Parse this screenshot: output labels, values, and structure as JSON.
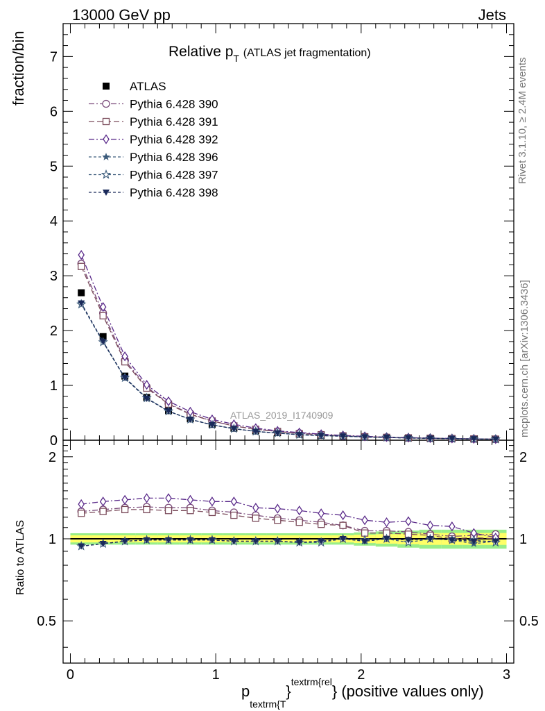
{
  "header": {
    "left": "13000 GeV pp",
    "right": "Jets"
  },
  "side": {
    "rivet": "Rivet 3.1.10, ≥ 2.4M events",
    "mcplots": "mcplots.cern.ch [arXiv:1306.3436]"
  },
  "watermark": "ATLAS_2019_I1740909",
  "chart_data": [
    {
      "type": "scatter",
      "panel": "main",
      "title": "Relative p_T (ATLAS jet fragmentation)",
      "title_parts": {
        "main": "Relative p",
        "sub": "T",
        "rest": "(ATLAS jet fragmentation)"
      },
      "ylabel": "fraction/bin",
      "xlim": [
        -0.05,
        3.05
      ],
      "ylim": [
        0,
        7.6
      ],
      "yticks": [
        0,
        1,
        2,
        3,
        4,
        5,
        6,
        7
      ],
      "legend": "top-left",
      "x": [
        0.075,
        0.225,
        0.375,
        0.525,
        0.675,
        0.825,
        0.975,
        1.125,
        1.275,
        1.425,
        1.575,
        1.725,
        1.875,
        2.025,
        2.175,
        2.325,
        2.475,
        2.625,
        2.775,
        2.925
      ],
      "series": [
        {
          "name": "ATLAS",
          "color": "#000000",
          "marker": "square-filled",
          "dash": "none",
          "values": [
            2.69,
            1.89,
            1.17,
            0.78,
            0.54,
            0.39,
            0.29,
            0.22,
            0.17,
            0.14,
            0.11,
            0.09,
            0.073,
            0.06,
            0.05,
            0.042,
            0.035,
            0.029,
            0.024,
            0.019
          ]
        },
        {
          "name": "Pythia 6.428 390",
          "color": "#7a4a7a",
          "marker": "circle-open",
          "dash": "8,3,2,3",
          "values": [
            3.22,
            2.32,
            1.46,
            0.97,
            0.67,
            0.48,
            0.35,
            0.26,
            0.2,
            0.16,
            0.13,
            0.1,
            0.081,
            0.065,
            0.053,
            0.044,
            0.036,
            0.029,
            0.024,
            0.02
          ]
        },
        {
          "name": "Pythia 6.428 391",
          "color": "#7a4a5a",
          "marker": "square-open",
          "dash": "8,4",
          "values": [
            3.17,
            2.27,
            1.43,
            0.95,
            0.66,
            0.47,
            0.35,
            0.26,
            0.2,
            0.16,
            0.12,
            0.1,
            0.08,
            0.063,
            0.052,
            0.043,
            0.035,
            0.029,
            0.024,
            0.019
          ]
        },
        {
          "name": "Pythia 6.428 392",
          "color": "#5a2a8a",
          "marker": "diamond-open",
          "dash": "8,3,2,3",
          "values": [
            3.38,
            2.43,
            1.53,
            1.01,
            0.71,
            0.52,
            0.38,
            0.29,
            0.22,
            0.17,
            0.14,
            0.11,
            0.088,
            0.071,
            0.057,
            0.048,
            0.039,
            0.032,
            0.025,
            0.019
          ]
        },
        {
          "name": "Pythia 6.428 396",
          "color": "#3a5a7a",
          "marker": "star-filled",
          "dash": "4,3",
          "values": [
            2.5,
            1.79,
            1.13,
            0.76,
            0.53,
            0.38,
            0.28,
            0.21,
            0.16,
            0.13,
            0.1,
            0.085,
            0.073,
            0.059,
            0.05,
            0.041,
            0.034,
            0.028,
            0.023,
            0.018
          ]
        },
        {
          "name": "Pythia 6.428 397",
          "color": "#3a5a7a",
          "marker": "star-open",
          "dash": "4,3",
          "values": [
            2.48,
            1.79,
            1.14,
            0.77,
            0.53,
            0.38,
            0.28,
            0.21,
            0.16,
            0.13,
            0.1,
            0.084,
            0.072,
            0.059,
            0.05,
            0.041,
            0.034,
            0.028,
            0.023,
            0.018
          ]
        },
        {
          "name": "Pythia 6.428 398",
          "color": "#1a2a5a",
          "marker": "triangle-down-filled",
          "dash": "4,3",
          "values": [
            2.5,
            1.8,
            1.14,
            0.76,
            0.53,
            0.38,
            0.28,
            0.21,
            0.16,
            0.13,
            0.1,
            0.085,
            0.073,
            0.059,
            0.05,
            0.041,
            0.034,
            0.028,
            0.023,
            0.018
          ]
        }
      ]
    },
    {
      "type": "scatter",
      "panel": "ratio",
      "ylabel": "Ratio to ATLAS",
      "xlabel_parts": {
        "p": "p",
        "sub": "textrm{T",
        "brace": "}",
        "sup": "textrm{rel",
        "tail": "} (positive values only)"
      },
      "xlim": [
        -0.05,
        3.05
      ],
      "ylim": [
        0.35,
        2.3
      ],
      "yticks": [
        0.5,
        1,
        2
      ],
      "ytick_labels": [
        "0.5",
        "1",
        "2"
      ],
      "xticks": [
        0,
        1,
        2,
        3
      ],
      "xtick_labels": [
        "0",
        "1",
        "2",
        "3"
      ],
      "band": {
        "inner_color": "#ffff66",
        "outer_color": "#99ee88"
      },
      "band_halfwidth": [
        0.03,
        0.03,
        0.03,
        0.03,
        0.03,
        0.03,
        0.03,
        0.03,
        0.03,
        0.03,
        0.03,
        0.03,
        0.03,
        0.035,
        0.04,
        0.045,
        0.05,
        0.05,
        0.05,
        0.05
      ],
      "x": [
        0.075,
        0.225,
        0.375,
        0.525,
        0.675,
        0.825,
        0.975,
        1.125,
        1.275,
        1.425,
        1.575,
        1.725,
        1.875,
        2.025,
        2.175,
        2.325,
        2.475,
        2.625,
        2.775,
        2.925
      ],
      "series": [
        {
          "name": "Pythia 6.428 390",
          "color": "#7a4a7a",
          "marker": "circle-open",
          "dash": "8,3,2,3",
          "values": [
            1.26,
            1.28,
            1.3,
            1.31,
            1.3,
            1.3,
            1.27,
            1.25,
            1.22,
            1.19,
            1.17,
            1.15,
            1.12,
            1.07,
            1.07,
            1.06,
            1.04,
            1.02,
            1.03,
            1.04
          ]
        },
        {
          "name": "Pythia 6.428 391",
          "color": "#7a4a5a",
          "marker": "square-open",
          "dash": "8,4",
          "values": [
            1.24,
            1.26,
            1.28,
            1.28,
            1.27,
            1.27,
            1.25,
            1.22,
            1.19,
            1.17,
            1.15,
            1.13,
            1.12,
            1.05,
            1.05,
            1.04,
            1.03,
            1.0,
            1.01,
            1.0
          ]
        },
        {
          "name": "Pythia 6.428 392",
          "color": "#5a2a8a",
          "marker": "diamond-open",
          "dash": "8,3,2,3",
          "values": [
            1.34,
            1.37,
            1.39,
            1.41,
            1.41,
            1.39,
            1.37,
            1.37,
            1.3,
            1.29,
            1.27,
            1.24,
            1.22,
            1.17,
            1.15,
            1.16,
            1.12,
            1.11,
            1.05,
            1.01
          ]
        },
        {
          "name": "Pythia 6.428 396",
          "color": "#3a5a7a",
          "marker": "star-filled",
          "dash": "4,3",
          "values": [
            0.94,
            0.96,
            0.98,
            0.99,
            0.99,
            0.99,
            0.99,
            0.98,
            0.98,
            0.98,
            0.97,
            0.98,
            1.0,
            0.98,
            1.0,
            0.99,
            1.0,
            0.99,
            0.96,
            0.98
          ]
        },
        {
          "name": "Pythia 6.428 397",
          "color": "#3a5a7a",
          "marker": "star-open",
          "dash": "4,3",
          "values": [
            0.94,
            0.96,
            0.98,
            0.99,
            0.99,
            0.99,
            0.99,
            0.98,
            0.98,
            0.98,
            0.97,
            0.97,
            1.0,
            0.99,
            1.0,
            0.97,
            1.0,
            0.99,
            0.99,
            0.97
          ]
        },
        {
          "name": "Pythia 6.428 398",
          "color": "#1a2a5a",
          "marker": "triangle-down-filled",
          "dash": "4,3",
          "values": [
            0.94,
            0.96,
            0.98,
            0.99,
            0.99,
            0.99,
            0.99,
            0.98,
            0.98,
            0.98,
            0.97,
            0.98,
            1.0,
            0.98,
            1.0,
            0.99,
            1.0,
            0.99,
            0.98,
            0.98
          ]
        }
      ]
    }
  ]
}
